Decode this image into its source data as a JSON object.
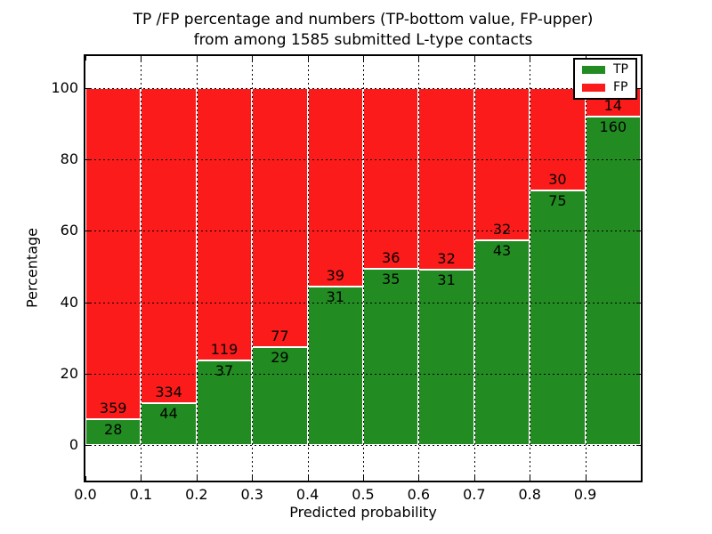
{
  "chart_data": {
    "type": "bar",
    "stacked": true,
    "normalized_to_percent": true,
    "title": [
      "TP /FP percentage and numbers (TP-bottom value, FP-upper)",
      "from among 1585 submitted L-type contacts"
    ],
    "total_contacts_in_title": 1585,
    "xlabel": "Predicted probability",
    "ylabel": "Percentage",
    "categories": [
      "0.0-0.1",
      "0.1-0.2",
      "0.2-0.3",
      "0.3-0.4",
      "0.4-0.5",
      "0.5-0.6",
      "0.6-0.7",
      "0.7-0.8",
      "0.8-0.9",
      "0.9-1.0"
    ],
    "series": [
      {
        "name": "TP",
        "color": "#228b22",
        "values": [
          28,
          44,
          37,
          29,
          31,
          35,
          31,
          43,
          75,
          160
        ]
      },
      {
        "name": "FP",
        "color": "#fb1b1b",
        "values": [
          359,
          334,
          119,
          77,
          39,
          36,
          32,
          32,
          30,
          14
        ]
      }
    ],
    "tp_percent_of_bin": [
      7.2,
      11.6,
      23.7,
      27.4,
      44.3,
      49.3,
      49.2,
      57.3,
      71.4,
      92.0
    ],
    "x_ticks": [
      {
        "value": 0.0,
        "label": "0.0"
      },
      {
        "value": 0.1,
        "label": "0.1"
      },
      {
        "value": 0.2,
        "label": "0.2"
      },
      {
        "value": 0.3,
        "label": "0.3"
      },
      {
        "value": 0.4,
        "label": "0.4"
      },
      {
        "value": 0.5,
        "label": "0.5"
      },
      {
        "value": 0.6,
        "label": "0.6"
      },
      {
        "value": 0.7,
        "label": "0.7"
      },
      {
        "value": 0.8,
        "label": "0.8"
      },
      {
        "value": 0.9,
        "label": "0.9"
      }
    ],
    "y_ticks": [
      0,
      20,
      40,
      60,
      80,
      100
    ],
    "xlim": [
      0.0,
      1.0
    ],
    "ylim": [
      -10,
      109
    ],
    "grid": true,
    "grid_style": "dotted-black",
    "bar_edge_color": "#ffffff",
    "legend": {
      "entries": [
        "TP",
        "FP"
      ],
      "position": "upper right"
    }
  }
}
